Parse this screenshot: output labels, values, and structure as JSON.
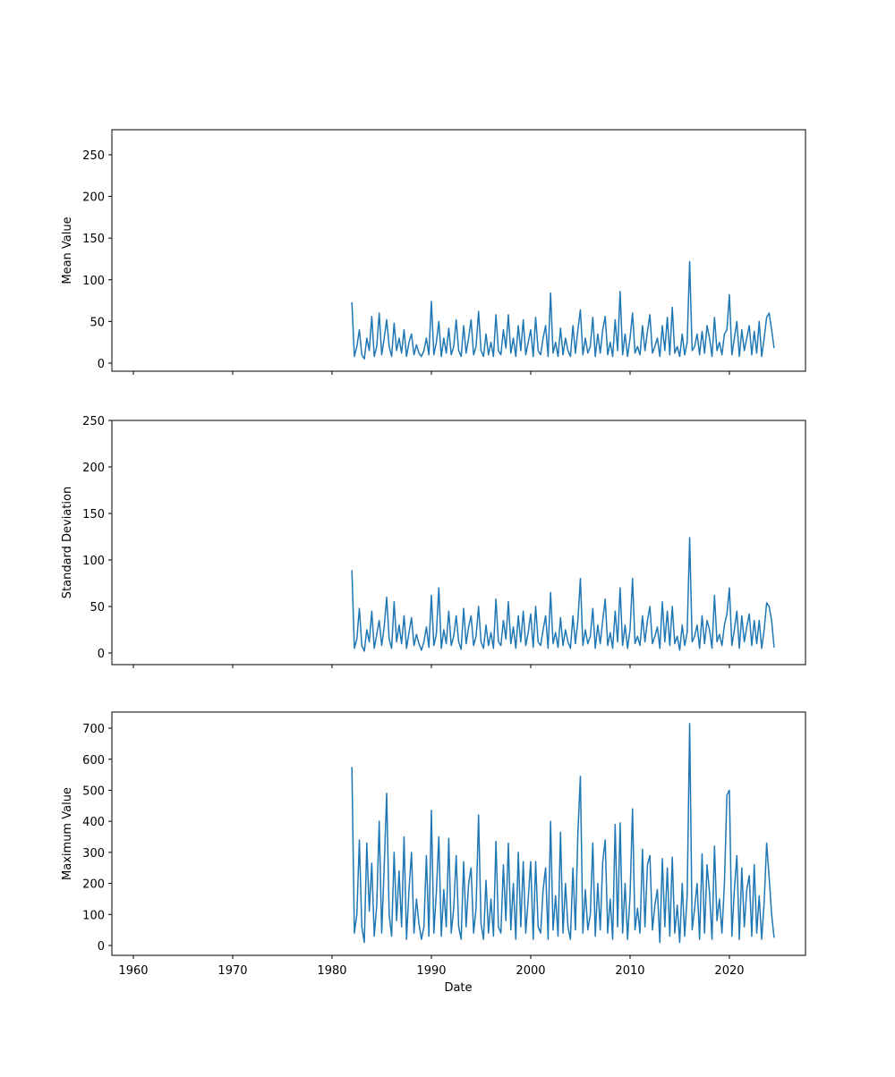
{
  "chart_data": {
    "type": "line",
    "xlabel": "Date",
    "xlim": [
      1957.84,
      2027.66
    ],
    "xticks": [
      1960,
      1970,
      1980,
      1990,
      2000,
      2010,
      2020
    ],
    "x": [
      1982,
      1982.25,
      1982.5,
      1982.75,
      1983,
      1983.25,
      1983.5,
      1983.75,
      1984,
      1984.25,
      1984.5,
      1984.75,
      1985,
      1985.25,
      1985.5,
      1985.75,
      1986,
      1986.25,
      1986.5,
      1986.75,
      1987,
      1987.25,
      1987.5,
      1987.75,
      1988,
      1988.25,
      1988.5,
      1988.75,
      1989,
      1989.25,
      1989.5,
      1989.75,
      1990,
      1990.25,
      1990.5,
      1990.75,
      1991,
      1991.25,
      1991.5,
      1991.75,
      1992,
      1992.25,
      1992.5,
      1992.75,
      1993,
      1993.25,
      1993.5,
      1993.75,
      1994,
      1994.25,
      1994.5,
      1994.75,
      1995,
      1995.25,
      1995.5,
      1995.75,
      1996,
      1996.25,
      1996.5,
      1996.75,
      1997,
      1997.25,
      1997.5,
      1997.75,
      1998,
      1998.25,
      1998.5,
      1998.75,
      1999,
      1999.25,
      1999.5,
      1999.75,
      2000,
      2000.25,
      2000.5,
      2000.75,
      2001,
      2001.25,
      2001.5,
      2001.75,
      2002,
      2002.25,
      2002.5,
      2002.75,
      2003,
      2003.25,
      2003.5,
      2003.75,
      2004,
      2004.25,
      2004.5,
      2004.75,
      2005,
      2005.25,
      2005.5,
      2005.75,
      2006,
      2006.25,
      2006.5,
      2006.75,
      2007,
      2007.25,
      2007.5,
      2007.75,
      2008,
      2008.25,
      2008.5,
      2008.75,
      2009,
      2009.25,
      2009.5,
      2009.75,
      2010,
      2010.25,
      2010.5,
      2010.75,
      2011,
      2011.25,
      2011.5,
      2011.75,
      2012,
      2012.25,
      2012.5,
      2012.75,
      2013,
      2013.25,
      2013.5,
      2013.75,
      2014,
      2014.25,
      2014.5,
      2014.75,
      2015,
      2015.25,
      2015.5,
      2015.75,
      2016,
      2016.25,
      2016.5,
      2016.75,
      2017,
      2017.25,
      2017.5,
      2017.75,
      2018,
      2018.25,
      2018.5,
      2018.75,
      2019,
      2019.25,
      2019.5,
      2019.75,
      2020,
      2020.25,
      2020.5,
      2020.75,
      2021,
      2021.25,
      2021.5,
      2021.75,
      2022,
      2022.25,
      2022.5,
      2022.75,
      2023,
      2023.25,
      2023.5,
      2023.75,
      2024,
      2024.25,
      2024.5
    ],
    "panels": [
      {
        "ylabel": "Mean Value",
        "ylim": [
          -9.7,
          280
        ],
        "yticks": [
          0,
          50,
          100,
          150,
          200,
          250
        ],
        "series": [
          {
            "color": "#1f77b4",
            "values": [
              73,
              8,
              20,
              40,
              10,
              5,
              30,
              15,
              56,
              8,
              20,
              60,
              10,
              30,
              52,
              20,
              8,
              48,
              15,
              30,
              12,
              40,
              8,
              25,
              35,
              10,
              22,
              12,
              8,
              15,
              30,
              10,
              74,
              10,
              25,
              50,
              8,
              30,
              12,
              42,
              10,
              20,
              52,
              15,
              8,
              45,
              12,
              30,
              52,
              10,
              20,
              62,
              15,
              8,
              35,
              10,
              25,
              8,
              58,
              15,
              10,
              40,
              18,
              58,
              12,
              30,
              8,
              45,
              15,
              52,
              10,
              25,
              40,
              8,
              55,
              15,
              10,
              30,
              45,
              8,
              84,
              12,
              25,
              8,
              42,
              10,
              30,
              15,
              8,
              45,
              12,
              40,
              64,
              10,
              30,
              12,
              20,
              55,
              8,
              35,
              12,
              40,
              56,
              10,
              25,
              8,
              52,
              15,
              86,
              10,
              35,
              8,
              30,
              60,
              12,
              20,
              10,
              45,
              15,
              38,
              58,
              12,
              20,
              30,
              8,
              45,
              15,
              55,
              10,
              67,
              12,
              20,
              8,
              35,
              10,
              25,
              122,
              15,
              20,
              35,
              10,
              38,
              12,
              45,
              30,
              8,
              55,
              15,
              25,
              10,
              35,
              40,
              82,
              10,
              30,
              50,
              8,
              40,
              15,
              30,
              45,
              10,
              38,
              12,
              50,
              8,
              30,
              55,
              60,
              40,
              18
            ]
          }
        ]
      },
      {
        "ylabel": "Standard Deviation",
        "ylim": [
          -12.5,
          250
        ],
        "yticks": [
          0,
          50,
          100,
          150,
          200,
          250
        ],
        "series": [
          {
            "color": "#1f77b4",
            "values": [
              89,
              5,
              15,
              48,
              8,
              2,
              25,
              12,
              45,
              5,
              20,
              35,
              8,
              28,
              60,
              15,
              5,
              55,
              12,
              30,
              10,
              40,
              5,
              22,
              38,
              8,
              20,
              10,
              3,
              12,
              28,
              6,
              62,
              8,
              20,
              70,
              5,
              25,
              10,
              45,
              8,
              18,
              40,
              12,
              4,
              48,
              10,
              28,
              40,
              8,
              18,
              50,
              12,
              5,
              30,
              8,
              22,
              5,
              58,
              12,
              8,
              35,
              15,
              55,
              10,
              28,
              5,
              40,
              12,
              45,
              8,
              22,
              42,
              6,
              50,
              12,
              8,
              25,
              40,
              5,
              65,
              10,
              22,
              6,
              38,
              8,
              25,
              12,
              5,
              40,
              10,
              35,
              80,
              8,
              25,
              10,
              18,
              48,
              5,
              30,
              10,
              35,
              58,
              8,
              22,
              5,
              45,
              12,
              70,
              8,
              30,
              5,
              25,
              80,
              10,
              18,
              8,
              40,
              12,
              35,
              50,
              10,
              18,
              28,
              5,
              55,
              12,
              45,
              8,
              50,
              10,
              18,
              3,
              30,
              8,
              22,
              124,
              12,
              18,
              30,
              5,
              40,
              10,
              35,
              25,
              5,
              62,
              12,
              20,
              8,
              30,
              42,
              70,
              8,
              25,
              45,
              5,
              40,
              12,
              28,
              42,
              8,
              35,
              10,
              35,
              5,
              25,
              54,
              50,
              35,
              6
            ]
          }
        ]
      },
      {
        "ylabel": "Maximum Value",
        "ylim": [
          -31.7,
          752
        ],
        "yticks": [
          0,
          100,
          200,
          300,
          400,
          500,
          600,
          700
        ],
        "series": [
          {
            "color": "#1f77b4",
            "values": [
              575,
              40,
              100,
              340,
              60,
              10,
              330,
              110,
              265,
              30,
              130,
              400,
              40,
              250,
              490,
              100,
              30,
              300,
              80,
              240,
              60,
              350,
              20,
              180,
              300,
              40,
              150,
              70,
              20,
              60,
              290,
              30,
              435,
              40,
              170,
              350,
              30,
              180,
              60,
              345,
              40,
              120,
              290,
              60,
              20,
              270,
              60,
              200,
              250,
              40,
              120,
              420,
              70,
              20,
              210,
              40,
              150,
              30,
              335,
              60,
              40,
              260,
              80,
              330,
              50,
              200,
              20,
              300,
              60,
              270,
              40,
              150,
              270,
              20,
              270,
              60,
              40,
              180,
              250,
              20,
              400,
              50,
              160,
              30,
              365,
              40,
              200,
              60,
              20,
              250,
              50,
              365,
              545,
              40,
              180,
              50,
              100,
              330,
              30,
              200,
              50,
              270,
              340,
              40,
              150,
              20,
              390,
              60,
              395,
              40,
              200,
              20,
              160,
              440,
              50,
              120,
              40,
              310,
              60,
              260,
              290,
              50,
              130,
              180,
              10,
              280,
              60,
              250,
              30,
              285,
              40,
              130,
              10,
              200,
              30,
              160,
              715,
              50,
              120,
              200,
              20,
              295,
              40,
              260,
              170,
              20,
              320,
              80,
              150,
              40,
              200,
              485,
              500,
              30,
              180,
              290,
              20,
              250,
              60,
              180,
              225,
              30,
              260,
              40,
              160,
              20,
              140,
              330,
              220,
              100,
              25
            ]
          }
        ]
      }
    ]
  }
}
